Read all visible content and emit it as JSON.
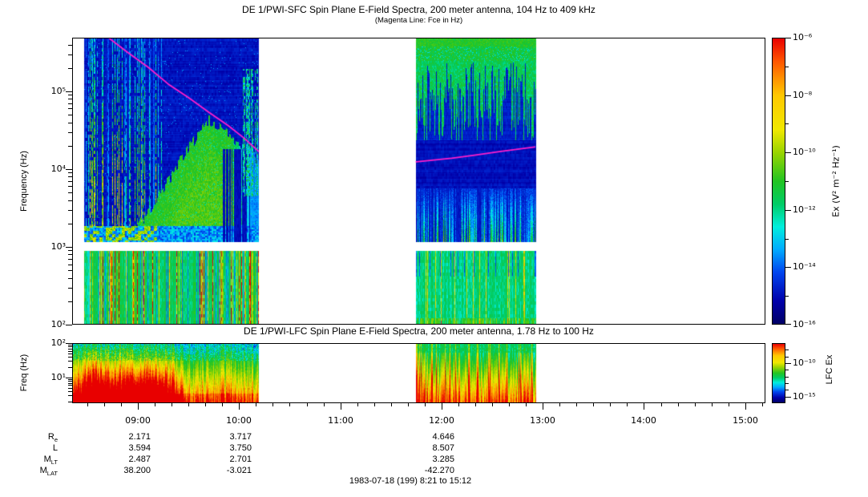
{
  "figure": {
    "date_line": "1983-07-18 (199) 8:21 to 15:12",
    "background": "#ffffff",
    "frame_color": "#000000"
  },
  "chart_data": [
    {
      "id": "sfc",
      "type": "heatmap",
      "title": "DE 1/PWI-SFC  Spin Plane E-Field Spectra, 200 meter antenna, 104 Hz to 409 kHz",
      "subtitle": "(Magenta Line: Fce in Hz)",
      "ylabel": "Frequency (Hz)",
      "yscale": "log",
      "ylim_hz": [
        100,
        490000
      ],
      "yticks": [
        {
          "hz": 100000,
          "label": "10⁵"
        },
        {
          "hz": 10000,
          "label": "10⁴"
        },
        {
          "hz": 1000,
          "label": "10³"
        },
        {
          "hz": 100,
          "label": "10²"
        }
      ],
      "x_start": "8:21",
      "x_end": "15:12",
      "xlim_hours": [
        8.35,
        15.2
      ],
      "xticks": [
        {
          "hour": 9,
          "label": "09:00"
        },
        {
          "hour": 10,
          "label": "10:00"
        },
        {
          "hour": 11,
          "label": "11:00"
        },
        {
          "hour": 12,
          "label": "12:00"
        },
        {
          "hour": 13,
          "label": "13:00"
        },
        {
          "hour": 14,
          "label": "14:00"
        },
        {
          "hour": 15,
          "label": "15:00"
        }
      ],
      "minor_tick_minutes": 10,
      "data_intervals_hours": [
        [
          8.41,
          10.19
        ],
        [
          11.75,
          12.93
        ]
      ],
      "band_gap_hz": [
        890,
        1170
      ],
      "colorbar": {
        "label": "Ex (V² m⁻² Hz⁻¹)",
        "max_exp": -6,
        "min_exp": -16,
        "ticks": [
          {
            "exp": -6,
            "label": "10⁻⁶"
          },
          {
            "exp": -8,
            "label": "10⁻⁸"
          },
          {
            "exp": -10,
            "label": "10⁻¹⁰"
          },
          {
            "exp": -12,
            "label": "10⁻¹²"
          },
          {
            "exp": -14,
            "label": "10⁻¹⁴"
          },
          {
            "exp": -16,
            "label": "10⁻¹⁶"
          }
        ]
      },
      "fce_line": {
        "label": "Fce",
        "color": "#ff1ecb",
        "segments_hour_hz": [
          [
            [
              8.7,
              500000
            ],
            [
              8.9,
              316000
            ],
            [
              9.1,
              205000
            ],
            [
              9.3,
              124000
            ],
            [
              9.5,
              83000
            ],
            [
              9.7,
              54000
            ],
            [
              9.89,
              36500
            ],
            [
              10.05,
              25000
            ],
            [
              10.19,
              17000
            ]
          ],
          [
            [
              11.75,
              12400
            ],
            [
              12.1,
              13800
            ],
            [
              12.31,
              15000
            ],
            [
              12.6,
              17000
            ],
            [
              12.92,
              19300
            ]
          ]
        ]
      }
    },
    {
      "id": "lfc",
      "type": "heatmap",
      "title": "DE 1/PWI-LFC  Spin Plane E-Field Spectra, 200 meter antenna, 1.78 Hz to 100 Hz",
      "ylabel": "Freq (Hz)",
      "yscale": "log",
      "ylim_hz": [
        1.78,
        100
      ],
      "yticks": [
        {
          "hz": 100,
          "label": "10²"
        },
        {
          "hz": 10,
          "label": "10¹"
        }
      ],
      "data_intervals_hours": [
        [
          8.35,
          10.19
        ],
        [
          11.75,
          12.93
        ]
      ],
      "colorbar": {
        "label": "LFC Ex",
        "max_exp": -7,
        "min_exp": -16,
        "ticks": [
          {
            "exp": -10,
            "label": "10⁻¹⁰"
          },
          {
            "exp": -15,
            "label": "10⁻¹⁵"
          }
        ]
      }
    }
  ],
  "ephemeris": {
    "rows": [
      {
        "name": "R",
        "sub": "e",
        "values": [
          "2.171",
          "3.717",
          "4.646"
        ]
      },
      {
        "name": "L",
        "sub": "",
        "values": [
          "3.594",
          "3.750",
          "8.507"
        ]
      },
      {
        "name": "M",
        "sub": "LT",
        "values": [
          "2.487",
          "2.701",
          "3.285"
        ]
      },
      {
        "name": "M",
        "sub": "LAT",
        "values": [
          "38.200",
          "-3.021",
          "-42.270"
        ]
      }
    ],
    "column_hours": [
      9,
      10,
      12
    ]
  },
  "colors": {
    "magenta_line": "#ff1ecb",
    "colormap_low": "#000066",
    "colormap_high": "#e80000"
  }
}
